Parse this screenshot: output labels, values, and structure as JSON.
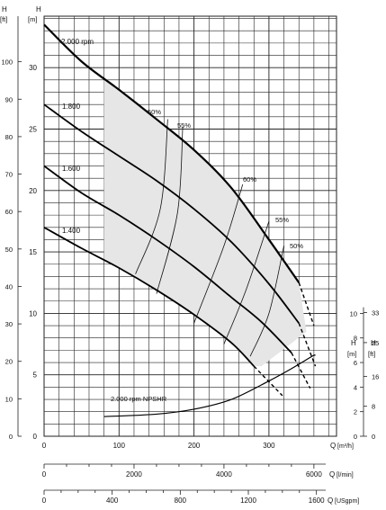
{
  "chart_data": {
    "type": "line",
    "axes": {
      "h_m": {
        "label": "H",
        "unit": "[m]",
        "ticks": [
          0,
          5,
          10,
          15,
          20,
          25,
          30
        ],
        "range": [
          0,
          35
        ]
      },
      "h_ft": {
        "label": "H",
        "unit": "[ft]",
        "ticks": [
          0,
          10,
          20,
          30,
          40,
          50,
          60,
          70,
          80,
          90,
          100
        ],
        "range": [
          0,
          115
        ]
      },
      "q_m3h": {
        "label": "Q",
        "unit": "[m³/h]",
        "ticks": [
          0,
          100,
          200,
          300
        ],
        "range": [
          0,
          380
        ]
      },
      "q_lmin": {
        "label": "Q",
        "unit": "[l/min]",
        "ticks": [
          0,
          2000,
          4000,
          6000
        ]
      },
      "q_usgpm": {
        "label": "Q",
        "unit": "[USgpm]",
        "ticks": [
          0,
          400,
          800,
          1200,
          1600
        ]
      },
      "npshr_m": {
        "label": "H",
        "unit": "[m]",
        "ticks": [
          0,
          2,
          4,
          6,
          8,
          10
        ]
      },
      "npshr_ft": {
        "label": "H",
        "unit": "[ft]",
        "ticks": [
          0,
          8,
          16,
          25,
          33
        ]
      }
    },
    "grid": true,
    "series": [
      {
        "name": "2.000 rpm",
        "x": [
          0,
          50,
          100,
          150,
          200,
          250,
          300,
          340
        ],
        "y": [
          33.5,
          30.5,
          28.2,
          25.8,
          23.3,
          20.2,
          16.0,
          12.5
        ],
        "dashed_from_x": 340,
        "dashed_to": [
          360,
          9.0
        ]
      },
      {
        "name": "1.800",
        "x": [
          0,
          50,
          100,
          150,
          200,
          250,
          300,
          340
        ],
        "y": [
          27.0,
          24.8,
          22.8,
          20.8,
          18.5,
          15.8,
          12.4,
          9.2
        ],
        "dashed_from_x": 340,
        "dashed_to": [
          362,
          5.7
        ]
      },
      {
        "name": "1.600",
        "x": [
          0,
          50,
          100,
          150,
          200,
          250,
          290,
          330
        ],
        "y": [
          22.0,
          19.8,
          18.0,
          16.0,
          13.8,
          11.3,
          9.3,
          6.8
        ],
        "dashed_from_x": 330,
        "dashed_to": [
          355,
          3.9
        ]
      },
      {
        "name": "1.400",
        "x": [
          0,
          50,
          100,
          150,
          200,
          250,
          280
        ],
        "y": [
          17.0,
          15.3,
          13.7,
          11.9,
          9.9,
          7.6,
          5.7
        ],
        "dashed_from_x": 280,
        "dashed_to": [
          318,
          3.3
        ]
      },
      {
        "name": "2.000 rpm NPSHR",
        "x": [
          80,
          150,
          200,
          250,
          300,
          330,
          360
        ],
        "y": [
          1.6,
          1.8,
          2.2,
          3.0,
          4.5,
          5.5,
          6.6
        ],
        "dashed_from_x": 330,
        "dashed_to": [
          362,
          6.6
        ]
      }
    ],
    "efficiency_labels": [
      "50%",
      "55%",
      "60%",
      "55%",
      "50%"
    ],
    "labels": {
      "rpm_2000": "2.000 rpm",
      "rpm_1800": "1.800",
      "rpm_1600": "1.600",
      "rpm_1400": "1.400",
      "npshr": "2.000 rpm  NPSHR"
    }
  }
}
